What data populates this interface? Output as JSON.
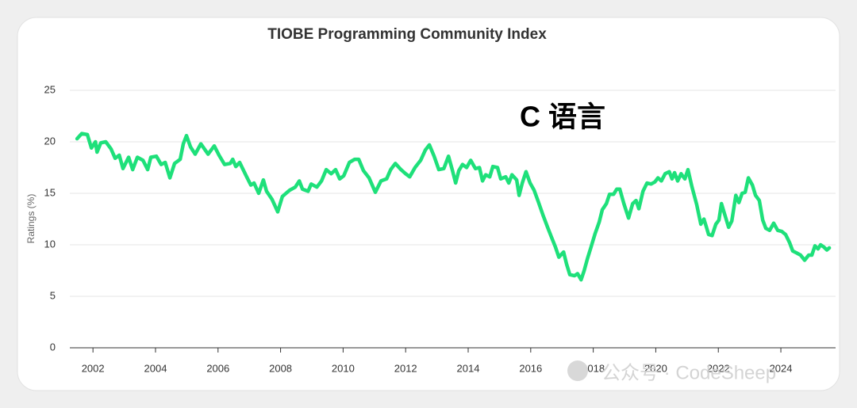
{
  "chart_data": {
    "type": "line",
    "title": "TIOBE Programming Community Index",
    "y_label": "Ratings (%)",
    "annotation": "C 语言",
    "watermark": "公众号 · CodeSheep",
    "xlim": [
      2001.26,
      2025.75
    ],
    "xticks": [
      2002,
      2004,
      2006,
      2008,
      2010,
      2012,
      2014,
      2016,
      2018,
      2020,
      2022,
      2024
    ],
    "ylim": [
      0,
      25
    ],
    "yticks": [
      0,
      5,
      10,
      15,
      20,
      25
    ],
    "grid": true,
    "x": [
      2001.49,
      2001.64,
      2001.82,
      2001.95,
      2002.08,
      2002.13,
      2002.25,
      2002.41,
      2002.58,
      2002.71,
      2002.84,
      2002.96,
      2003.14,
      2003.27,
      2003.42,
      2003.6,
      2003.75,
      2003.85,
      2004.03,
      2004.18,
      2004.31,
      2004.46,
      2004.61,
      2004.79,
      2004.89,
      2004.99,
      2005.12,
      2005.27,
      2005.45,
      2005.68,
      2005.88,
      2006.03,
      2006.21,
      2006.39,
      2006.47,
      2006.57,
      2006.69,
      2006.9,
      2007.05,
      2007.15,
      2007.3,
      2007.45,
      2007.55,
      2007.73,
      2007.91,
      2008.06,
      2008.29,
      2008.47,
      2008.6,
      2008.7,
      2008.88,
      2008.98,
      2009.16,
      2009.31,
      2009.46,
      2009.62,
      2009.76,
      2009.89,
      2010.02,
      2010.2,
      2010.37,
      2010.5,
      2010.65,
      2010.83,
      2011.03,
      2011.21,
      2011.39,
      2011.52,
      2011.67,
      2011.85,
      2012.0,
      2012.13,
      2012.3,
      2012.48,
      2012.63,
      2012.76,
      2012.91,
      2013.06,
      2013.22,
      2013.37,
      2013.49,
      2013.6,
      2013.7,
      2013.82,
      2013.95,
      2014.08,
      2014.23,
      2014.36,
      2014.46,
      2014.56,
      2014.69,
      2014.79,
      2014.94,
      2015.04,
      2015.2,
      2015.3,
      2015.4,
      2015.55,
      2015.63,
      2015.73,
      2015.85,
      2015.98,
      2016.11,
      2016.24,
      2016.39,
      2016.54,
      2016.67,
      2016.79,
      2016.9,
      2017.05,
      2017.15,
      2017.25,
      2017.4,
      2017.5,
      2017.61,
      2017.71,
      2017.81,
      2017.93,
      2018.06,
      2018.19,
      2018.29,
      2018.42,
      2018.52,
      2018.65,
      2018.75,
      2018.85,
      2018.98,
      2019.13,
      2019.26,
      2019.37,
      2019.46,
      2019.59,
      2019.72,
      2019.85,
      2019.97,
      2020.07,
      2020.18,
      2020.3,
      2020.43,
      2020.52,
      2020.6,
      2020.7,
      2020.81,
      2020.93,
      2021.03,
      2021.16,
      2021.31,
      2021.44,
      2021.54,
      2021.62,
      2021.69,
      2021.8,
      2021.92,
      2022.02,
      2022.1,
      2022.2,
      2022.33,
      2022.43,
      2022.56,
      2022.66,
      2022.76,
      2022.86,
      2022.96,
      2023.09,
      2023.19,
      2023.31,
      2023.42,
      2023.52,
      2023.64,
      2023.77,
      2023.9,
      2024.03,
      2024.15,
      2024.28,
      2024.38,
      2024.51,
      2024.63,
      2024.76,
      2024.89,
      2024.99,
      2025.09,
      2025.19,
      2025.27,
      2025.37,
      2025.47,
      2025.55
    ],
    "series": [
      {
        "name": "C",
        "color": "#1ee07a",
        "values": [
          20.3,
          20.8,
          20.7,
          19.4,
          20.0,
          19.0,
          19.9,
          20.0,
          19.3,
          18.4,
          18.7,
          17.4,
          18.5,
          17.3,
          18.5,
          18.2,
          17.3,
          18.5,
          18.6,
          17.8,
          18.0,
          16.5,
          17.9,
          18.3,
          19.8,
          20.6,
          19.5,
          18.8,
          19.8,
          18.8,
          19.6,
          18.7,
          17.8,
          17.9,
          18.3,
          17.6,
          18.0,
          16.7,
          15.8,
          16.0,
          15.0,
          16.3,
          15.2,
          14.4,
          13.2,
          14.7,
          15.3,
          15.6,
          16.2,
          15.4,
          15.2,
          15.9,
          15.6,
          16.2,
          17.3,
          16.9,
          17.3,
          16.4,
          16.7,
          18.0,
          18.3,
          18.3,
          17.2,
          16.5,
          15.1,
          16.2,
          16.4,
          17.3,
          17.9,
          17.3,
          16.9,
          16.6,
          17.5,
          18.2,
          19.2,
          19.7,
          18.6,
          17.3,
          17.4,
          18.6,
          17.3,
          16.0,
          17.2,
          17.8,
          17.5,
          18.2,
          17.4,
          17.5,
          16.2,
          16.8,
          16.6,
          17.6,
          17.5,
          16.4,
          16.6,
          16.0,
          16.8,
          16.3,
          14.8,
          16.0,
          17.1,
          16.0,
          15.3,
          14.2,
          12.9,
          11.7,
          10.7,
          9.8,
          8.8,
          9.3,
          8.1,
          7.1,
          7.0,
          7.2,
          6.6,
          7.5,
          8.6,
          9.8,
          11.1,
          12.2,
          13.4,
          14.0,
          14.9,
          14.9,
          15.4,
          15.4,
          14.0,
          12.6,
          14.0,
          14.3,
          13.5,
          15.2,
          16.0,
          15.9,
          16.1,
          16.5,
          16.2,
          16.9,
          17.1,
          16.4,
          17.0,
          16.2,
          16.9,
          16.4,
          17.3,
          15.6,
          13.9,
          12.0,
          12.5,
          11.7,
          11.0,
          10.9,
          12.0,
          12.4,
          14.0,
          13.0,
          11.7,
          12.3,
          14.8,
          14.1,
          15.0,
          15.1,
          16.5,
          15.8,
          14.8,
          14.3,
          12.4,
          11.6,
          11.4,
          12.1,
          11.4,
          11.3,
          11.0,
          10.2,
          9.4,
          9.2,
          9.0,
          8.5,
          9.0,
          9.0,
          9.9,
          9.6,
          10.0,
          9.8,
          9.5,
          9.7
        ]
      }
    ]
  }
}
